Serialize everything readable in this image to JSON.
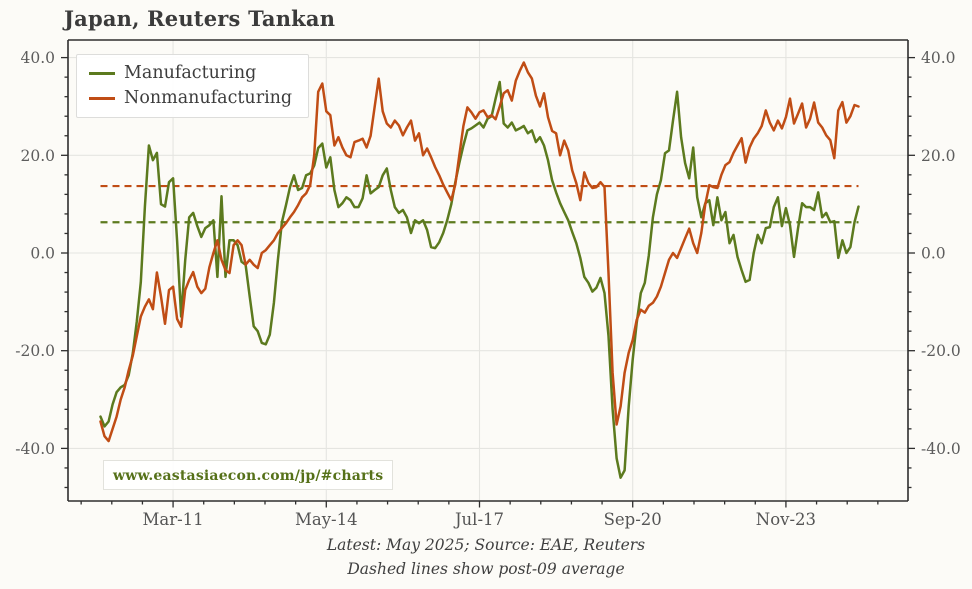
{
  "title": "Japan, Reuters Tankan",
  "legend": {
    "items": [
      {
        "label": "Manufacturing",
        "color": "#5c7a1e"
      },
      {
        "label": "Nonmanufacturing",
        "color": "#c04d15"
      }
    ]
  },
  "watermark": "www.eastasiaecon.com/jp/#charts",
  "footer": {
    "line1": "Latest: May 2025; Source: EAE, Reuters",
    "line2": "Dashed lines show post-09 average"
  },
  "chart_data": {
    "type": "line",
    "title": "Japan, Reuters Tankan",
    "frequency": "monthly",
    "x_start_month": "2009-09",
    "x_end_month": "2025-05",
    "grid": true,
    "legend_position": "upper left",
    "ylim": [
      -50.8,
      43.6
    ],
    "y_ticks": [
      40,
      20,
      0,
      -20,
      -40
    ],
    "y_tick_labels": [
      "40.0",
      "20.0",
      "0.0",
      "-20.0",
      "-40.0"
    ],
    "y_minor_tick_step": 4,
    "x_tick_labels": [
      {
        "label": "Mar-11",
        "month_index": 18
      },
      {
        "label": "May-14",
        "month_index": 56
      },
      {
        "label": "Jul-17",
        "month_index": 94
      },
      {
        "label": "Sep-20",
        "month_index": 132
      },
      {
        "label": "Nov-23",
        "month_index": 170
      }
    ],
    "x_minor_ticks_per_major": 5,
    "average_lines": [
      {
        "name": "Manufacturing post-09 average",
        "value": 6.3,
        "color": "#5c7a1e"
      },
      {
        "name": "Nonmanufacturing post-09 average",
        "value": 13.7,
        "color": "#c04d15"
      }
    ],
    "series": [
      {
        "name": "Manufacturing",
        "color": "#5c7a1e",
        "values": [
          -33.5,
          -35.5,
          -34.5,
          -31,
          -28.5,
          -27.5,
          -27,
          -25,
          -20.5,
          -14,
          -6,
          9.5,
          22,
          19,
          20.5,
          10,
          9.5,
          14.5,
          15.3,
          2.5,
          -13,
          -1.5,
          7.3,
          8.2,
          5.5,
          3.3,
          5.1,
          5.7,
          6.7,
          -4.9,
          11.6,
          -4.9,
          2.6,
          2.6,
          1.6,
          -1.8,
          -2.4,
          -8.9,
          -15,
          -16,
          -18.4,
          -18.7,
          -16.7,
          -10.2,
          -1.4,
          6.3,
          9.8,
          13.5,
          15.9,
          12.9,
          13.3,
          15.9,
          16.3,
          17.9,
          21.5,
          22.4,
          17.5,
          19.6,
          12.9,
          9.4,
          10.2,
          11.4,
          10.8,
          9.4,
          9.4,
          11.2,
          15.9,
          12.2,
          12.9,
          13.5,
          15.9,
          17.3,
          12.9,
          9.4,
          8.2,
          8.8,
          7.3,
          4.1,
          6.7,
          6.1,
          6.7,
          4.7,
          1.2,
          1,
          2.2,
          4.1,
          6.7,
          10,
          14.5,
          18.4,
          22,
          25.1,
          25.5,
          26.1,
          26.7,
          25.7,
          27.5,
          28,
          31.6,
          35,
          26.5,
          25.7,
          26.7,
          25.1,
          25.5,
          26,
          24.5,
          25.1,
          22.7,
          23.7,
          22,
          19,
          14.9,
          12.4,
          10.2,
          8.4,
          6.7,
          4.3,
          2,
          -1,
          -4.9,
          -6.1,
          -7.9,
          -7.1,
          -5.1,
          -8.2,
          -17,
          -32,
          -42,
          -46,
          -44.5,
          -31.4,
          -21.8,
          -14.3,
          -8.2,
          -6.1,
          -0.5,
          7.3,
          12,
          14.9,
          20.4,
          21,
          27.1,
          33,
          23.7,
          18.4,
          15.3,
          21.6,
          11.4,
          7.3,
          10.2,
          10.8,
          5.7,
          11.4,
          6.7,
          8.4,
          2,
          3.7,
          -0.8,
          -3.5,
          -5.9,
          -5.5,
          0,
          3.7,
          2,
          5.1,
          5.3,
          9.4,
          11.4,
          5.5,
          9.2,
          5.7,
          -0.8,
          5,
          10.2,
          9.4,
          9.4,
          8.8,
          12.4,
          7.3,
          8.2,
          6.3,
          6.5,
          -1,
          2.6,
          0,
          1.2,
          6.3,
          9.5
        ]
      },
      {
        "name": "Nonmanufacturing",
        "color": "#c04d15",
        "values": [
          -34.5,
          -37.5,
          -38.5,
          -36,
          -33.5,
          -30,
          -27.5,
          -24,
          -21,
          -17,
          -13,
          -11,
          -9.5,
          -11.5,
          -4,
          -8.9,
          -14.5,
          -7.6,
          -6.9,
          -13.5,
          -15.1,
          -7.6,
          -5.5,
          -3.9,
          -6.9,
          -8.2,
          -7.3,
          -2.9,
          0,
          2.6,
          -1.4,
          -3.5,
          -4.1,
          1.6,
          2.6,
          1.6,
          -2.4,
          -1.4,
          -2.4,
          -3.1,
          0,
          0.6,
          1.6,
          2.6,
          4.1,
          5.1,
          6.1,
          7.3,
          8.4,
          9.8,
          11.4,
          12.2,
          13.9,
          20,
          33,
          34.7,
          29,
          28.2,
          22,
          23.7,
          21.6,
          20,
          19.6,
          22.7,
          23,
          23.4,
          21.6,
          24,
          30,
          35.7,
          29,
          26.5,
          25.7,
          27.1,
          26.1,
          24.1,
          25.7,
          27.1,
          23,
          24.5,
          20,
          21.4,
          19.6,
          17.6,
          15.9,
          14,
          12.4,
          10.8,
          14,
          20,
          26,
          29.8,
          28.8,
          27.5,
          28.8,
          29.2,
          27.8,
          28.2,
          27.4,
          30,
          32.7,
          33.3,
          31.2,
          35.3,
          37.3,
          39,
          37,
          35.7,
          32.2,
          30,
          32.7,
          27.8,
          25,
          24.5,
          20,
          23,
          21,
          16.9,
          14.3,
          10.8,
          16.5,
          14.3,
          13.3,
          13.5,
          14.5,
          13.5,
          -4.1,
          -24.5,
          -35.1,
          -31.4,
          -24.5,
          -20.4,
          -17.8,
          -13.7,
          -11.6,
          -12.2,
          -10.8,
          -10.2,
          -8.9,
          -6.9,
          -4.1,
          -1.4,
          0,
          -1,
          1,
          3,
          5,
          2,
          0,
          4.1,
          10,
          13.9,
          13.5,
          13.3,
          16,
          18,
          18.6,
          20.5,
          22,
          23.5,
          18.5,
          21.6,
          23.4,
          24.5,
          26,
          29.2,
          26.7,
          25.1,
          27.1,
          25.5,
          27.8,
          31.6,
          26.5,
          28.5,
          30.6,
          25.7,
          27.5,
          30.8,
          26.7,
          25.7,
          24.1,
          23.1,
          19.4,
          29.2,
          30.9,
          26.7,
          28,
          30.3,
          30
        ]
      }
    ]
  },
  "style": {
    "background": "#fcfbf7",
    "grid_color": "#e5e5e1",
    "spine_color": "#2e2e2e",
    "tick_label_color": "#5d5d5d"
  }
}
